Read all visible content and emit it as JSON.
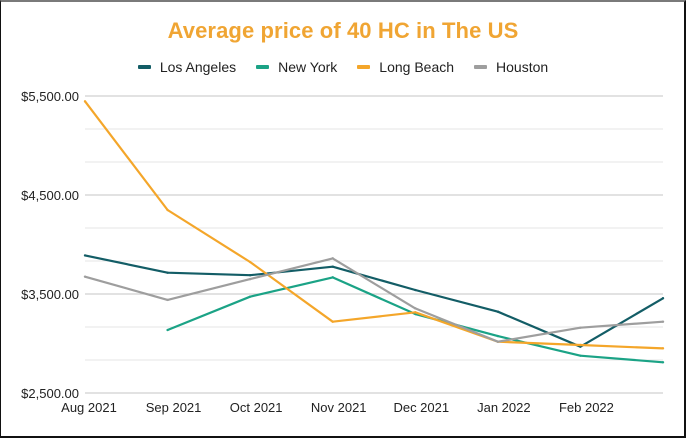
{
  "chart_data": {
    "type": "line",
    "title": "Average price of 40 HC in The US",
    "xlabel": "",
    "ylabel": "",
    "categories": [
      "Aug 2021",
      "Sep 2021",
      "Oct 2021",
      "Nov 2021",
      "Dec 2021",
      "Jan 2022",
      "Feb 2022",
      ""
    ],
    "ylim": [
      2500,
      5500
    ],
    "yticks": [
      2500,
      3500,
      4500,
      5500
    ],
    "ytick_labels": [
      "$2,500.00",
      "$3,500.00",
      "$4,500.00",
      "$5,500.00"
    ],
    "minor_gridlines_per_major": 3,
    "grid": true,
    "legend_position": "top",
    "series": [
      {
        "name": "Los Angeles",
        "color": "#135d66",
        "values": [
          3890,
          3715,
          3690,
          3776,
          3540,
          3321,
          2968,
          3457
        ]
      },
      {
        "name": "New York",
        "color": "#1ba386",
        "values": [
          null,
          3136,
          3473,
          3668,
          3298,
          3075,
          2877,
          2810
        ]
      },
      {
        "name": "Long Beach",
        "color": "#f4a62a",
        "values": [
          5446,
          4348,
          3823,
          3220,
          3315,
          3018,
          2985,
          2951
        ]
      },
      {
        "name": "Houston",
        "color": "#9e9e9e",
        "values": [
          3675,
          3440,
          3650,
          3860,
          3355,
          3018,
          3160,
          3220
        ]
      }
    ]
  }
}
